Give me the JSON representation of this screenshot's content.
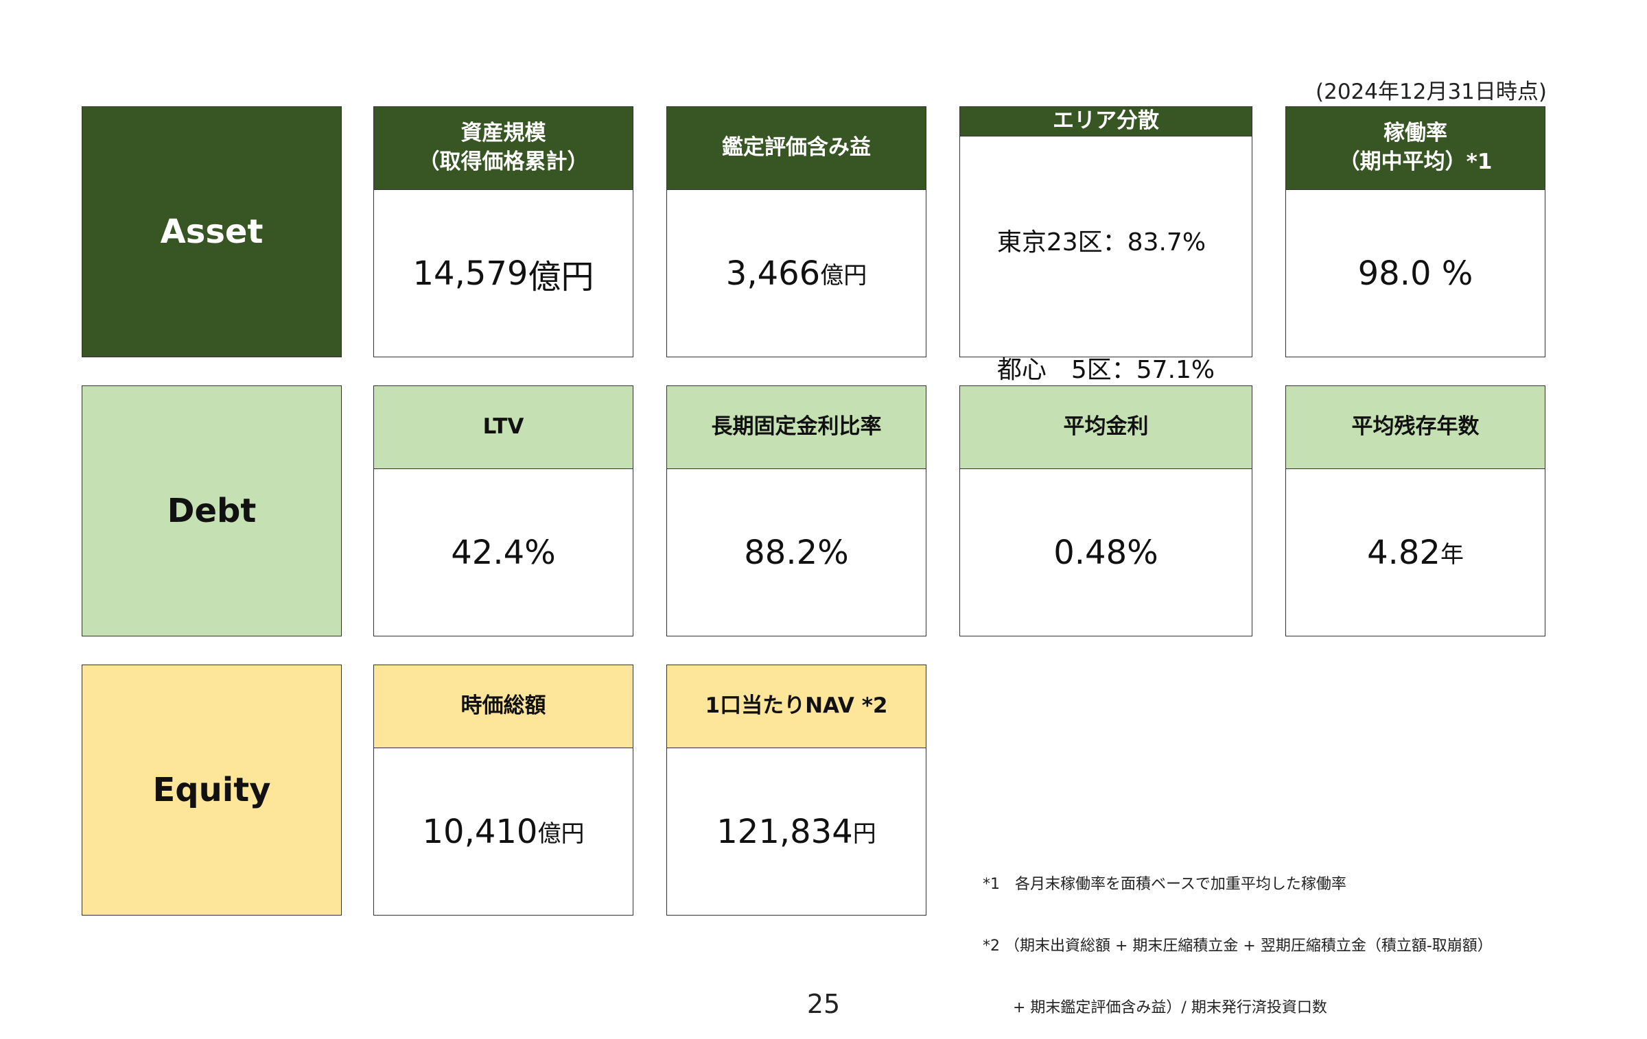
{
  "as_of_note": "(2024年12月31日時点)",
  "categories": {
    "asset": "Asset",
    "debt": "Debt",
    "equity": "Equity"
  },
  "asset": {
    "size": {
      "header": "資産規模\n（取得価格累計）",
      "value": "14,579",
      "unit": "億円"
    },
    "unrealized_gain": {
      "header": "鑑定評価含み益",
      "value": "3,466",
      "unit": "億円"
    },
    "area": {
      "header": "エリア分散",
      "lines": [
        "東京23区：83.7%",
        "都心　5区：57.1%"
      ]
    },
    "occupancy": {
      "header": "稼働率\n（期中平均）*1",
      "value": "98.0 %",
      "unit": ""
    }
  },
  "debt": {
    "ltv": {
      "header": "LTV",
      "value": "42.4%",
      "unit": ""
    },
    "fixed_ratio": {
      "header": "長期固定金利比率",
      "value": "88.2%",
      "unit": ""
    },
    "avg_rate": {
      "header": "平均金利",
      "value": "0.48%",
      "unit": ""
    },
    "avg_remaining": {
      "header": "平均残存年数",
      "value": "4.82",
      "unit": "年"
    }
  },
  "equity": {
    "market_cap": {
      "header": "時価総額",
      "value": "10,410",
      "unit": "億円"
    },
    "nav_per_unit": {
      "header": "1口当たりNAV *2",
      "value": "121,834",
      "unit": "円"
    }
  },
  "footnotes": [
    "*1　各月末稼働率を面積ベースで加重平均した稼働率",
    "*2 （期末出資総額 + 期末圧縮積立金 + 翌期圧縮積立金（積立額-取崩額）",
    "　　+ 期末鑑定評価含み益）/ 期末発行済投資口数"
  ],
  "page_number": "25"
}
